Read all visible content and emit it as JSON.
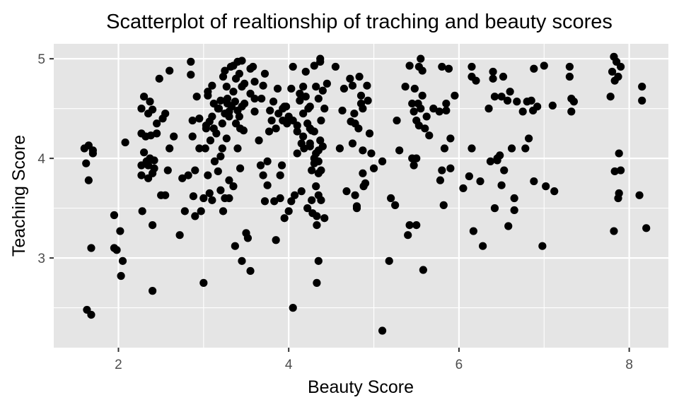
{
  "chart_data": {
    "type": "scatter",
    "title": "Scatterplot of realtionship of traching and beauty scores",
    "xlabel": "Beauty Score",
    "ylabel": "Teaching Score",
    "xlim": [
      1.24,
      8.46
    ],
    "ylim": [
      2.1,
      5.15
    ],
    "x_ticks": [
      2,
      4,
      6,
      8
    ],
    "y_ticks": [
      3,
      4,
      5
    ],
    "x_tick_labels": [
      "2",
      "4",
      "6",
      "8"
    ],
    "y_tick_labels": [
      "3",
      "4",
      "5"
    ],
    "grid": true,
    "legend": "none",
    "colors": {
      "panel": "#e5e5e5",
      "grid": "#ffffff",
      "point": "#000000",
      "tick": "#333333"
    },
    "points": [
      [
        1.6,
        4.1
      ],
      [
        1.62,
        3.95
      ],
      [
        1.65,
        4.13
      ],
      [
        1.7,
        4.05
      ],
      [
        1.7,
        4.08
      ],
      [
        1.65,
        3.78
      ],
      [
        1.68,
        3.1
      ],
      [
        1.63,
        2.48
      ],
      [
        1.68,
        2.43
      ],
      [
        1.95,
        3.43
      ],
      [
        1.95,
        3.1
      ],
      [
        1.98,
        3.08
      ],
      [
        2.02,
        3.27
      ],
      [
        2.05,
        2.97
      ],
      [
        2.03,
        2.82
      ],
      [
        2.08,
        4.16
      ],
      [
        2.27,
        4.5
      ],
      [
        2.27,
        4.25
      ],
      [
        2.27,
        3.93
      ],
      [
        2.27,
        3.83
      ],
      [
        2.28,
        3.47
      ],
      [
        2.3,
        4.06
      ],
      [
        2.3,
        4.62
      ],
      [
        2.32,
        4.22
      ],
      [
        2.33,
        3.97
      ],
      [
        2.35,
        4.45
      ],
      [
        2.35,
        3.93
      ],
      [
        2.35,
        3.8
      ],
      [
        2.37,
        4.0
      ],
      [
        2.37,
        4.57
      ],
      [
        2.38,
        4.23
      ],
      [
        2.4,
        4.49
      ],
      [
        2.4,
        3.85
      ],
      [
        2.4,
        3.33
      ],
      [
        2.4,
        2.67
      ],
      [
        2.42,
        3.98
      ],
      [
        2.42,
        3.9
      ],
      [
        2.45,
        4.35
      ],
      [
        2.45,
        4.25
      ],
      [
        2.48,
        4.8
      ],
      [
        2.5,
        3.63
      ],
      [
        2.52,
        4.4
      ],
      [
        2.55,
        4.45
      ],
      [
        2.55,
        3.63
      ],
      [
        2.58,
        3.88
      ],
      [
        2.6,
        4.1
      ],
      [
        2.6,
        4.88
      ],
      [
        2.65,
        4.22
      ],
      [
        2.72,
        3.23
      ],
      [
        2.75,
        3.8
      ],
      [
        2.78,
        3.47
      ],
      [
        2.82,
        3.83
      ],
      [
        2.85,
        4.97
      ],
      [
        2.85,
        4.84
      ],
      [
        2.87,
        4.22
      ],
      [
        2.87,
        4.38
      ],
      [
        2.88,
        3.62
      ],
      [
        2.9,
        3.42
      ],
      [
        2.9,
        3.88
      ],
      [
        2.92,
        4.62
      ],
      [
        2.95,
        4.4
      ],
      [
        2.95,
        4.1
      ],
      [
        2.97,
        3.47
      ],
      [
        3.0,
        3.6
      ],
      [
        3.0,
        2.75
      ],
      [
        3.02,
        4.1
      ],
      [
        3.03,
        4.3
      ],
      [
        3.03,
        4.33
      ],
      [
        3.05,
        4.63
      ],
      [
        3.05,
        4.67
      ],
      [
        3.05,
        3.83
      ],
      [
        3.07,
        4.37
      ],
      [
        3.07,
        3.65
      ],
      [
        3.08,
        4.18
      ],
      [
        3.1,
        4.73
      ],
      [
        3.1,
        4.42
      ],
      [
        3.1,
        3.58
      ],
      [
        3.12,
        4.55
      ],
      [
        3.12,
        4.3
      ],
      [
        3.13,
        3.97
      ],
      [
        3.15,
        4.25
      ],
      [
        3.17,
        4.5
      ],
      [
        3.17,
        3.87
      ],
      [
        3.18,
        4.5
      ],
      [
        3.2,
        4.58
      ],
      [
        3.2,
        4.02
      ],
      [
        3.2,
        3.68
      ],
      [
        3.22,
        4.35
      ],
      [
        3.22,
        4.1
      ],
      [
        3.23,
        4.82
      ],
      [
        3.23,
        3.47
      ],
      [
        3.25,
        4.88
      ],
      [
        3.25,
        4.45
      ],
      [
        3.25,
        3.6
      ],
      [
        3.27,
        4.72
      ],
      [
        3.27,
        4.2
      ],
      [
        3.28,
        4.6
      ],
      [
        3.28,
        4.55
      ],
      [
        3.3,
        4.47
      ],
      [
        3.3,
        4.42
      ],
      [
        3.3,
        3.78
      ],
      [
        3.3,
        3.6
      ],
      [
        3.32,
        4.92
      ],
      [
        3.33,
        4.52
      ],
      [
        3.35,
        4.93
      ],
      [
        3.35,
        4.67
      ],
      [
        3.35,
        3.72
      ],
      [
        3.37,
        4.57
      ],
      [
        3.37,
        3.12
      ],
      [
        3.38,
        4.8
      ],
      [
        3.38,
        4.35
      ],
      [
        3.4,
        4.48
      ],
      [
        3.4,
        4.1
      ],
      [
        3.4,
        4.97
      ],
      [
        3.42,
        4.85
      ],
      [
        3.42,
        4.42
      ],
      [
        3.43,
        4.3
      ],
      [
        3.43,
        3.9
      ],
      [
        3.45,
        4.98
      ],
      [
        3.45,
        4.72
      ],
      [
        3.45,
        4.52
      ],
      [
        3.45,
        2.97
      ],
      [
        3.47,
        4.28
      ],
      [
        3.48,
        4.75
      ],
      [
        3.48,
        4.55
      ],
      [
        3.5,
        3.25
      ],
      [
        3.52,
        3.2
      ],
      [
        3.55,
        4.9
      ],
      [
        3.55,
        4.65
      ],
      [
        3.55,
        2.87
      ],
      [
        3.58,
        4.92
      ],
      [
        3.6,
        4.77
      ],
      [
        3.6,
        4.47
      ],
      [
        3.6,
        4.6
      ],
      [
        3.65,
        4.18
      ],
      [
        3.67,
        3.93
      ],
      [
        3.68,
        4.6
      ],
      [
        3.7,
        4.73
      ],
      [
        3.7,
        3.83
      ],
      [
        3.72,
        4.85
      ],
      [
        3.72,
        3.57
      ],
      [
        3.75,
        3.73
      ],
      [
        3.75,
        3.97
      ],
      [
        3.77,
        4.27
      ],
      [
        3.78,
        4.48
      ],
      [
        3.8,
        4.38
      ],
      [
        3.82,
        4.57
      ],
      [
        3.83,
        3.57
      ],
      [
        3.85,
        3.18
      ],
      [
        3.85,
        4.3
      ],
      [
        3.87,
        4.7
      ],
      [
        3.88,
        4.45
      ],
      [
        3.9,
        3.6
      ],
      [
        3.9,
        3.83
      ],
      [
        3.92,
        3.93
      ],
      [
        3.93,
        4.38
      ],
      [
        3.93,
        4.5
      ],
      [
        3.95,
        4.52
      ],
      [
        3.95,
        3.4
      ],
      [
        3.97,
        4.52
      ],
      [
        3.98,
        4.35
      ],
      [
        4.0,
        3.47
      ],
      [
        4.0,
        4.42
      ],
      [
        4.03,
        3.57
      ],
      [
        4.03,
        4.7
      ],
      [
        4.05,
        4.92
      ],
      [
        4.05,
        4.38
      ],
      [
        4.05,
        2.5
      ],
      [
        4.07,
        3.63
      ],
      [
        4.1,
        4.05
      ],
      [
        4.1,
        4.27
      ],
      [
        4.1,
        4.33
      ],
      [
        4.13,
        4.58
      ],
      [
        4.13,
        4.65
      ],
      [
        4.15,
        3.67
      ],
      [
        4.15,
        4.15
      ],
      [
        4.17,
        4.45
      ],
      [
        4.17,
        4.72
      ],
      [
        4.17,
        4.22
      ],
      [
        4.18,
        4.1
      ],
      [
        4.2,
        4.87
      ],
      [
        4.2,
        4.62
      ],
      [
        4.22,
        4.35
      ],
      [
        4.22,
        3.5
      ],
      [
        4.23,
        4.5
      ],
      [
        4.25,
        4.52
      ],
      [
        4.25,
        4.15
      ],
      [
        4.25,
        4.3
      ],
      [
        4.25,
        4.12
      ],
      [
        4.27,
        4.28
      ],
      [
        4.27,
        3.88
      ],
      [
        4.27,
        3.58
      ],
      [
        4.28,
        3.45
      ],
      [
        4.3,
        4.0
      ],
      [
        4.3,
        3.95
      ],
      [
        4.3,
        4.93
      ],
      [
        4.3,
        4.27
      ],
      [
        4.32,
        4.72
      ],
      [
        4.32,
        4.05
      ],
      [
        4.32,
        3.72
      ],
      [
        4.33,
        3.42
      ],
      [
        4.33,
        3.33
      ],
      [
        4.35,
        4.6
      ],
      [
        4.35,
        4.08
      ],
      [
        4.35,
        3.97
      ],
      [
        4.35,
        3.85
      ],
      [
        4.35,
        3.63
      ],
      [
        4.35,
        2.97
      ],
      [
        4.33,
        2.75
      ],
      [
        4.37,
        4.97
      ],
      [
        4.37,
        5.0
      ],
      [
        4.37,
        4.18
      ],
      [
        4.38,
        4.38
      ],
      [
        4.38,
        3.88
      ],
      [
        4.38,
        3.58
      ],
      [
        4.4,
        4.68
      ],
      [
        4.4,
        4.12
      ],
      [
        4.42,
        4.5
      ],
      [
        4.42,
        3.4
      ],
      [
        4.45,
        4.75
      ],
      [
        4.55,
        4.92
      ],
      [
        4.6,
        4.1
      ],
      [
        4.63,
        4.48
      ],
      [
        4.65,
        4.7
      ],
      [
        4.68,
        3.67
      ],
      [
        4.72,
        4.8
      ],
      [
        4.73,
        4.37
      ],
      [
        4.75,
        4.15
      ],
      [
        4.75,
        4.73
      ],
      [
        4.77,
        4.45
      ],
      [
        4.78,
        4.35
      ],
      [
        4.78,
        3.63
      ],
      [
        4.8,
        3.52
      ],
      [
        4.8,
        3.5
      ],
      [
        4.82,
        4.3
      ],
      [
        4.83,
        4.82
      ],
      [
        4.85,
        4.63
      ],
      [
        4.85,
        4.55
      ],
      [
        4.87,
        4.5
      ],
      [
        4.87,
        4.08
      ],
      [
        4.87,
        3.85
      ],
      [
        4.88,
        3.72
      ],
      [
        4.9,
        3.75
      ],
      [
        4.92,
        4.73
      ],
      [
        4.93,
        4.58
      ],
      [
        4.95,
        4.25
      ],
      [
        4.97,
        4.05
      ],
      [
        5.0,
        3.9
      ],
      [
        5.1,
        3.97
      ],
      [
        5.1,
        2.27
      ],
      [
        5.18,
        2.97
      ],
      [
        5.2,
        3.6
      ],
      [
        5.25,
        3.53
      ],
      [
        5.27,
        4.38
      ],
      [
        5.3,
        4.08
      ],
      [
        5.37,
        4.72
      ],
      [
        5.4,
        3.23
      ],
      [
        5.42,
        4.93
      ],
      [
        5.42,
        3.33
      ],
      [
        5.45,
        4.0
      ],
      [
        5.45,
        4.55
      ],
      [
        5.47,
        4.47
      ],
      [
        5.47,
        3.93
      ],
      [
        5.48,
        4.7
      ],
      [
        5.5,
        4.38
      ],
      [
        5.5,
        4.0
      ],
      [
        5.5,
        3.33
      ],
      [
        5.52,
        4.55
      ],
      [
        5.53,
        4.92
      ],
      [
        5.53,
        4.33
      ],
      [
        5.55,
        4.5
      ],
      [
        5.55,
        5.0
      ],
      [
        5.57,
        4.88
      ],
      [
        5.57,
        4.63
      ],
      [
        5.58,
        2.88
      ],
      [
        5.6,
        4.3
      ],
      [
        5.62,
        4.42
      ],
      [
        5.65,
        4.23
      ],
      [
        5.7,
        4.5
      ],
      [
        5.77,
        4.47
      ],
      [
        5.78,
        3.78
      ],
      [
        5.8,
        4.92
      ],
      [
        5.8,
        3.88
      ],
      [
        5.82,
        3.53
      ],
      [
        5.83,
        4.1
      ],
      [
        5.85,
        4.55
      ],
      [
        5.85,
        4.48
      ],
      [
        5.88,
        4.9
      ],
      [
        5.9,
        4.2
      ],
      [
        5.9,
        3.9
      ],
      [
        5.95,
        4.63
      ],
      [
        6.05,
        3.7
      ],
      [
        6.12,
        3.82
      ],
      [
        6.15,
        4.92
      ],
      [
        6.15,
        4.82
      ],
      [
        6.15,
        4.1
      ],
      [
        6.17,
        3.27
      ],
      [
        6.2,
        4.78
      ],
      [
        6.25,
        3.77
      ],
      [
        6.28,
        3.12
      ],
      [
        6.35,
        4.5
      ],
      [
        6.37,
        3.97
      ],
      [
        6.4,
        4.87
      ],
      [
        6.4,
        4.8
      ],
      [
        6.42,
        4.62
      ],
      [
        6.42,
        3.5
      ],
      [
        6.45,
        4.0
      ],
      [
        6.45,
        3.98
      ],
      [
        6.48,
        4.03
      ],
      [
        6.5,
        3.73
      ],
      [
        6.5,
        4.62
      ],
      [
        6.52,
        4.82
      ],
      [
        6.53,
        3.88
      ],
      [
        6.57,
        4.58
      ],
      [
        6.58,
        3.32
      ],
      [
        6.6,
        4.67
      ],
      [
        6.62,
        4.1
      ],
      [
        6.65,
        3.6
      ],
      [
        6.65,
        3.48
      ],
      [
        6.68,
        4.57
      ],
      [
        6.75,
        4.47
      ],
      [
        6.78,
        4.1
      ],
      [
        6.8,
        4.57
      ],
      [
        6.82,
        4.2
      ],
      [
        6.85,
        4.58
      ],
      [
        6.87,
        4.48
      ],
      [
        6.88,
        4.9
      ],
      [
        6.88,
        3.77
      ],
      [
        6.92,
        4.52
      ],
      [
        6.98,
        3.12
      ],
      [
        7.0,
        4.93
      ],
      [
        7.02,
        3.72
      ],
      [
        7.1,
        4.53
      ],
      [
        7.12,
        3.67
      ],
      [
        7.3,
        4.92
      ],
      [
        7.3,
        4.82
      ],
      [
        7.32,
        4.6
      ],
      [
        7.32,
        4.47
      ],
      [
        7.35,
        4.57
      ],
      [
        7.78,
        4.62
      ],
      [
        7.8,
        4.87
      ],
      [
        7.82,
        5.02
      ],
      [
        7.82,
        3.27
      ],
      [
        7.83,
        4.78
      ],
      [
        7.83,
        3.87
      ],
      [
        7.85,
        4.97
      ],
      [
        7.87,
        4.82
      ],
      [
        7.87,
        3.6
      ],
      [
        7.88,
        4.05
      ],
      [
        7.88,
        3.65
      ],
      [
        7.9,
        4.92
      ],
      [
        7.9,
        3.88
      ],
      [
        8.12,
        3.63
      ],
      [
        8.15,
        4.72
      ],
      [
        8.15,
        4.58
      ],
      [
        8.2,
        3.3
      ]
    ]
  }
}
